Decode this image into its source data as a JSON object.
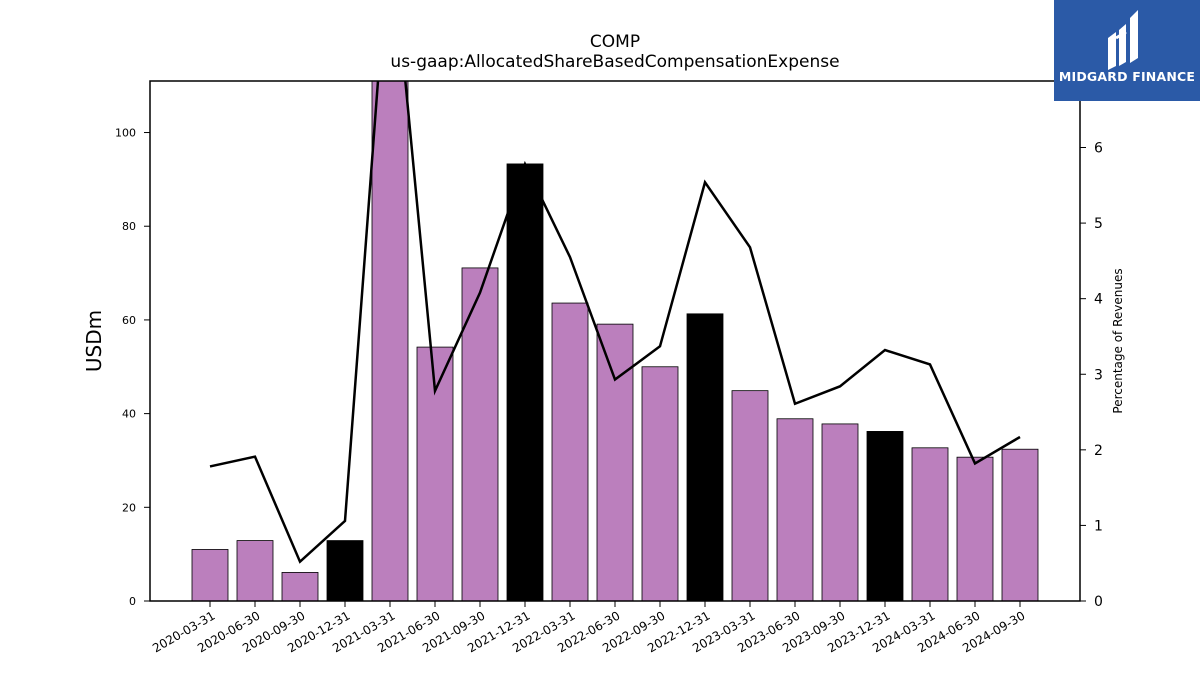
{
  "chart_data": {
    "type": "bar",
    "title": "COMP",
    "subtitle": "us-gaap:AllocatedShareBasedCompensationExpense",
    "ylabel": "USDm",
    "y2label": "Percentage of Revenues",
    "ylim": [
      0,
      111
    ],
    "y2lim": [
      0,
      6.88
    ],
    "yticks": [
      0,
      20,
      40,
      60,
      80,
      100
    ],
    "y2ticks": [
      0,
      1,
      2,
      3,
      4,
      5,
      6
    ],
    "categories": [
      "2020-03-31",
      "2020-06-30",
      "2020-09-30",
      "2020-12-31",
      "2021-03-31",
      "2021-06-30",
      "2021-09-30",
      "2021-12-31",
      "2022-03-31",
      "2022-06-30",
      "2022-09-30",
      "2022-12-31",
      "2023-03-31",
      "2023-06-30",
      "2023-09-30",
      "2023-12-31",
      "2024-03-31",
      "2024-06-30",
      "2024-09-30"
    ],
    "series": [
      {
        "type": "bar",
        "values": [
          11.0,
          12.9,
          6.1,
          12.9,
          111.0,
          54.2,
          71.1,
          93.3,
          63.6,
          59.1,
          50.0,
          61.3,
          44.9,
          38.9,
          37.8,
          36.2,
          32.7,
          30.7,
          32.4
        ],
        "colors": [
          "#bb7fbd",
          "#bb7fbd",
          "#bb7fbd",
          "#000000",
          "#bb7fbd",
          "#bb7fbd",
          "#bb7fbd",
          "#000000",
          "#bb7fbd",
          "#bb7fbd",
          "#bb7fbd",
          "#000000",
          "#bb7fbd",
          "#bb7fbd",
          "#bb7fbd",
          "#000000",
          "#bb7fbd",
          "#bb7fbd",
          "#bb7fbd"
        ]
      },
      {
        "type": "line",
        "axis": "right",
        "color": "#000000",
        "values": [
          1.78,
          1.91,
          0.52,
          1.06,
          9.0,
          2.78,
          4.08,
          5.78,
          4.55,
          2.93,
          3.37,
          5.54,
          4.68,
          2.61,
          2.84,
          3.32,
          3.13,
          1.82,
          2.17
        ]
      }
    ],
    "grid": false
  },
  "logo": {
    "text": "MIDGARD FINANCE",
    "color": "#2b5aa7"
  }
}
